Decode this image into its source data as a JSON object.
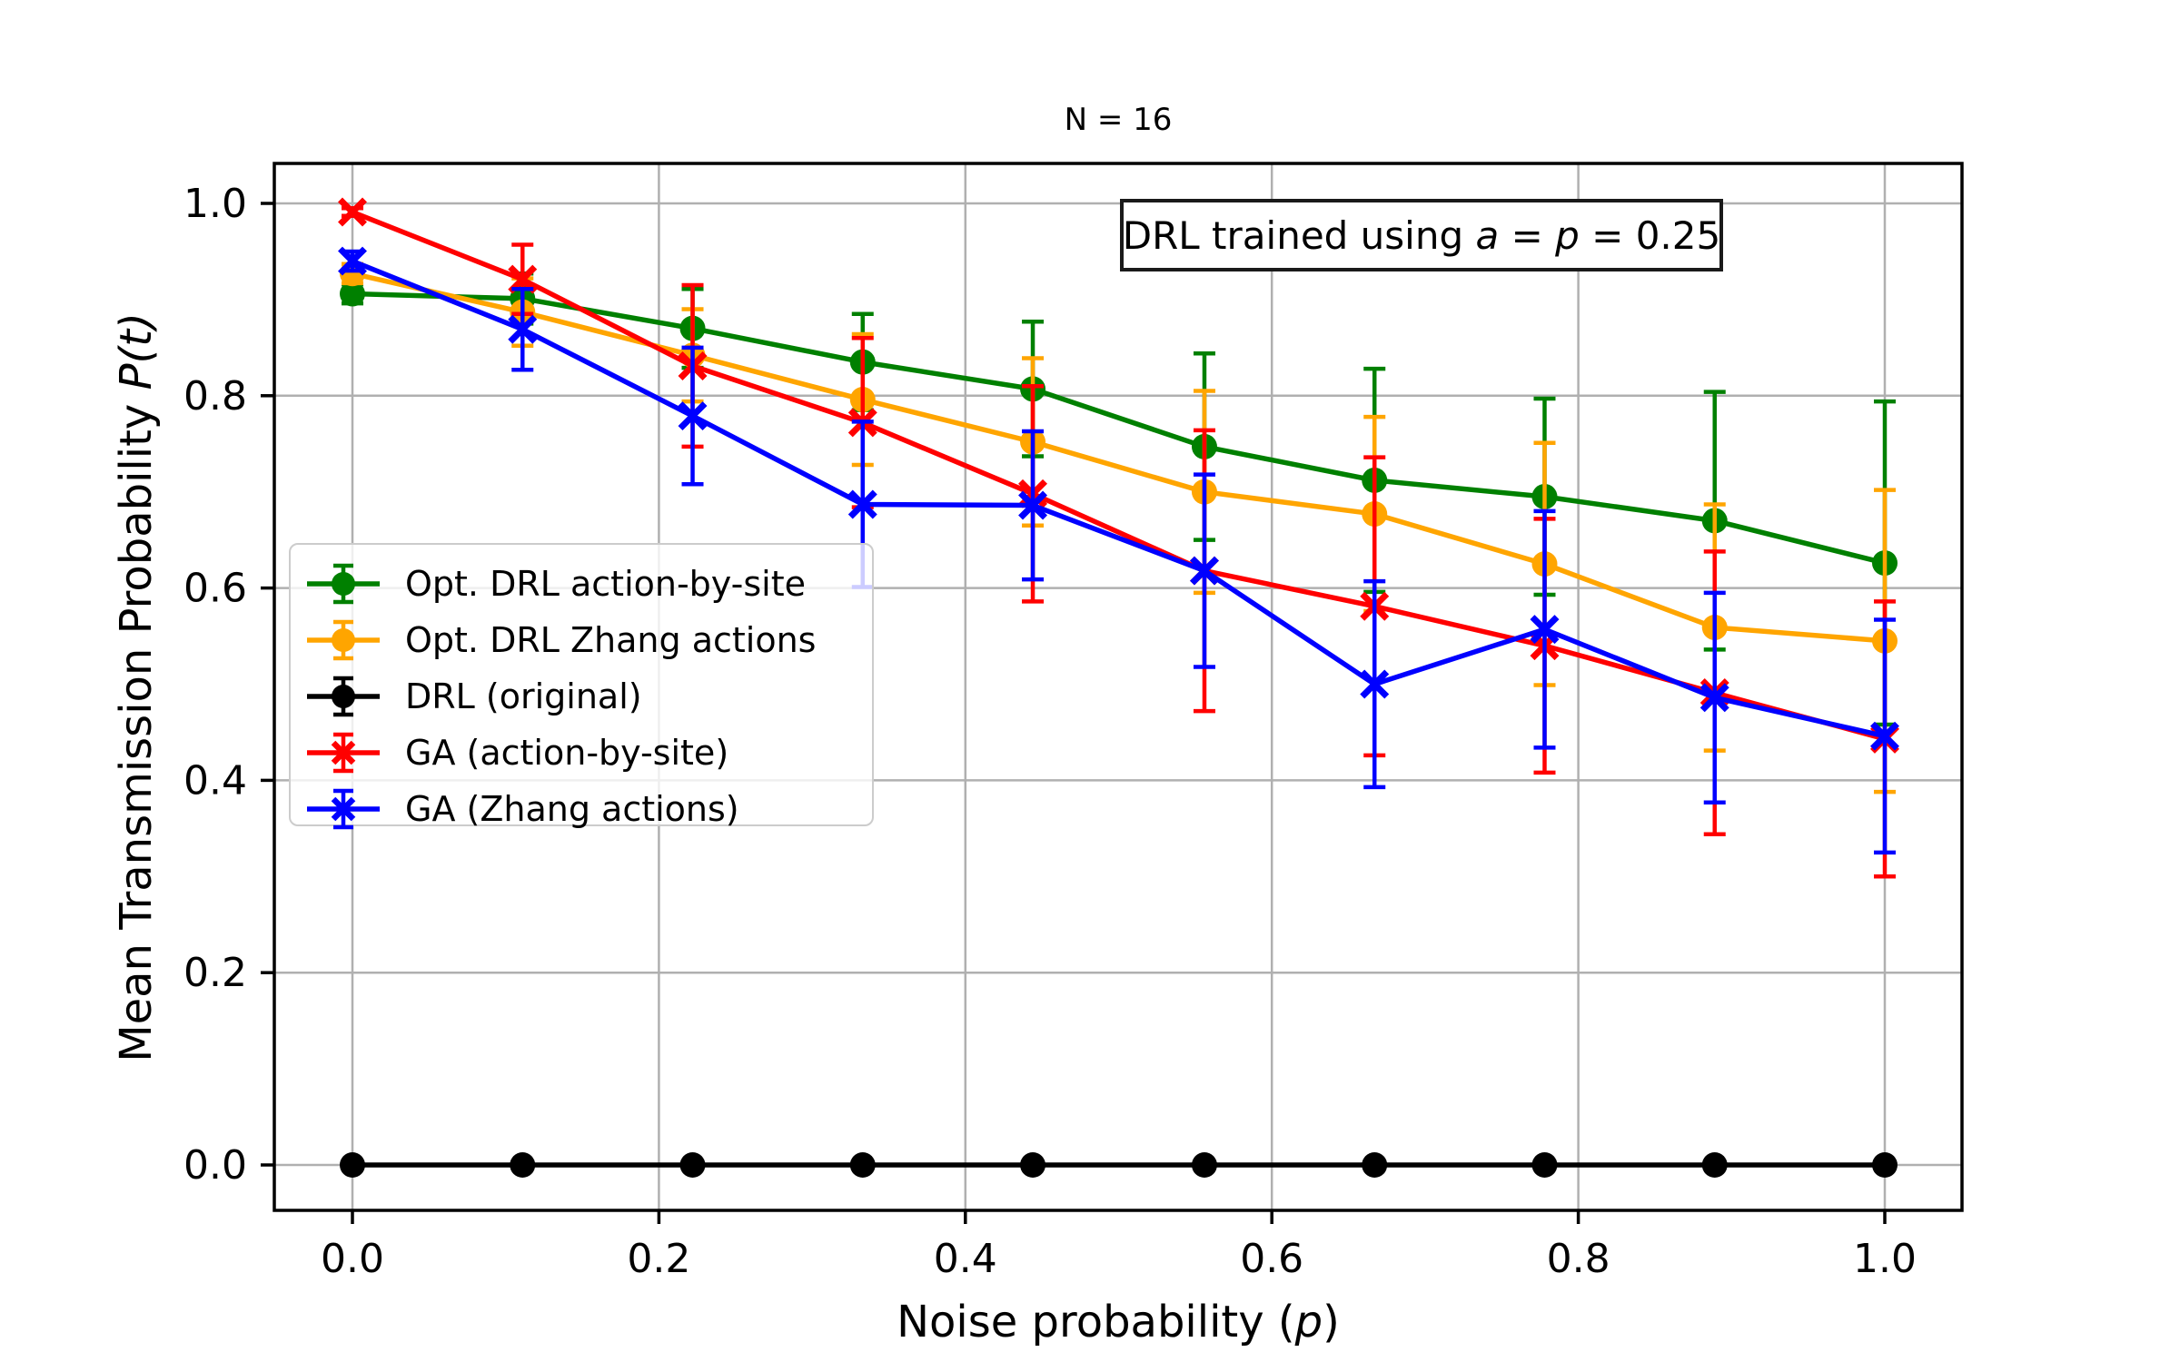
{
  "title": "N = 16",
  "annotation": {
    "prefix": "DRL trained using ",
    "var1": "a",
    "mid": " = ",
    "var2": "p",
    "suffix": " = 0.25"
  },
  "axes": {
    "xlabel_prefix": "Noise probability (",
    "xlabel_var": "p",
    "xlabel_suffix": ")",
    "ylabel_prefix": "Mean Transmission Probability ",
    "ylabel_math": "P(t)"
  },
  "chart_data": {
    "type": "line",
    "title": "N = 16",
    "xlabel": "Noise probability (p)",
    "ylabel": "Mean Transmission Probability P(t)",
    "grid": true,
    "legend_position": "center-left",
    "xlim": [
      -0.05,
      1.05
    ],
    "ylim": [
      -0.05,
      1.05
    ],
    "xticks": [
      0.0,
      0.2,
      0.4,
      0.6,
      0.8,
      1.0
    ],
    "yticks": [
      0.0,
      0.2,
      0.4,
      0.6,
      0.8,
      1.0
    ],
    "x": [
      0.0,
      0.111,
      0.222,
      0.333,
      0.444,
      0.556,
      0.667,
      0.778,
      0.889,
      1.0
    ],
    "colors": {
      "grid": "#b0b0b0",
      "spine": "#000000",
      "background": "#ffffff",
      "legend_edge": "#cccccc"
    },
    "series": [
      {
        "name": "Opt. DRL action-by-site",
        "color": "#008000",
        "marker": "circle",
        "values": [
          0.906,
          0.901,
          0.87,
          0.835,
          0.807,
          0.747,
          0.712,
          0.695,
          0.67,
          0.626
        ],
        "errors": [
          0.01,
          0.026,
          0.041,
          0.05,
          0.07,
          0.097,
          0.116,
          0.102,
          0.134,
          0.168
        ]
      },
      {
        "name": "Opt. DRL Zhang actions",
        "color": "#ffa500",
        "marker": "circle",
        "values": [
          0.927,
          0.887,
          0.842,
          0.796,
          0.752,
          0.7,
          0.677,
          0.625,
          0.559,
          0.545
        ],
        "errors": [
          0.01,
          0.035,
          0.048,
          0.068,
          0.087,
          0.105,
          0.101,
          0.126,
          0.128,
          0.157
        ]
      },
      {
        "name": "DRL (original)",
        "color": "#000000",
        "marker": "circle",
        "values": [
          0.0,
          0.0,
          0.0,
          0.0,
          0.0,
          0.0,
          0.0,
          0.0,
          0.0,
          0.0
        ],
        "errors": [
          0.0,
          0.0,
          0.0,
          0.0,
          0.0,
          0.0,
          0.0,
          0.0,
          0.0,
          0.0
        ]
      },
      {
        "name": "GA (action-by-site)",
        "color": "#ff0000",
        "marker": "x",
        "values": [
          0.991,
          0.921,
          0.831,
          0.772,
          0.698,
          0.618,
          0.581,
          0.54,
          0.491,
          0.443
        ],
        "errors": [
          0.004,
          0.036,
          0.084,
          0.088,
          0.112,
          0.146,
          0.155,
          0.132,
          0.147,
          0.143
        ]
      },
      {
        "name": "GA (Zhang actions)",
        "color": "#0000ff",
        "marker": "x",
        "values": [
          0.94,
          0.869,
          0.779,
          0.687,
          0.686,
          0.618,
          0.5,
          0.557,
          0.486,
          0.446
        ],
        "errors": [
          0.01,
          0.042,
          0.071,
          0.086,
          0.077,
          0.1,
          0.107,
          0.123,
          0.109,
          0.121
        ]
      }
    ]
  }
}
